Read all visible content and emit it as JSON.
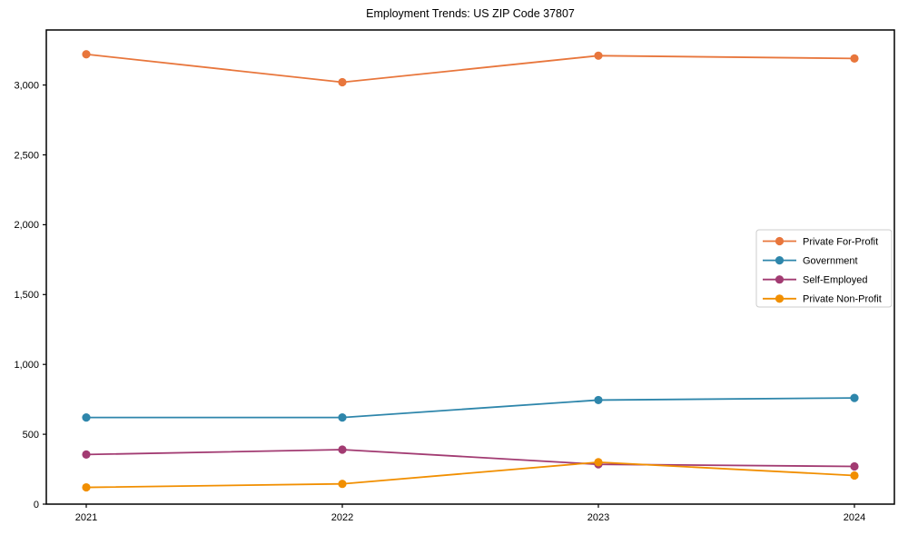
{
  "figure": {
    "background": "#ffffff",
    "spine_color": "#000000",
    "text_color": "#000000"
  },
  "chart_data": {
    "type": "line",
    "title": "Employment Trends: US ZIP Code 37807",
    "x": [
      2021,
      2022,
      2023,
      2024
    ],
    "x_tick_labels": [
      "2021",
      "2022",
      "2023",
      "2024"
    ],
    "series": [
      {
        "name": "Private For-Profit",
        "color": "#E8763C",
        "values": [
          3220,
          3020,
          3210,
          3190
        ]
      },
      {
        "name": "Government",
        "color": "#2E86AB",
        "values": [
          620,
          620,
          745,
          760
        ]
      },
      {
        "name": "Self-Employed",
        "color": "#A23B72",
        "values": [
          355,
          390,
          285,
          270
        ]
      },
      {
        "name": "Private Non-Profit",
        "color": "#F18F01",
        "values": [
          120,
          145,
          300,
          205
        ]
      }
    ],
    "xlabel": "",
    "ylabel": "",
    "ylim": [
      0,
      3394
    ],
    "yticks": [
      0,
      500,
      1000,
      1500,
      2000,
      2500,
      3000
    ],
    "ytick_labels": [
      "0",
      "500",
      "1,000",
      "1,500",
      "2,000",
      "2,500",
      "3,000"
    ],
    "grid": false,
    "marker": "circle",
    "legend": {
      "position": "center-right",
      "border_color": "#cccccc",
      "background": "#ffffff",
      "entries": [
        "Private For-Profit",
        "Government",
        "Self-Employed",
        "Private Non-Profit"
      ]
    }
  }
}
